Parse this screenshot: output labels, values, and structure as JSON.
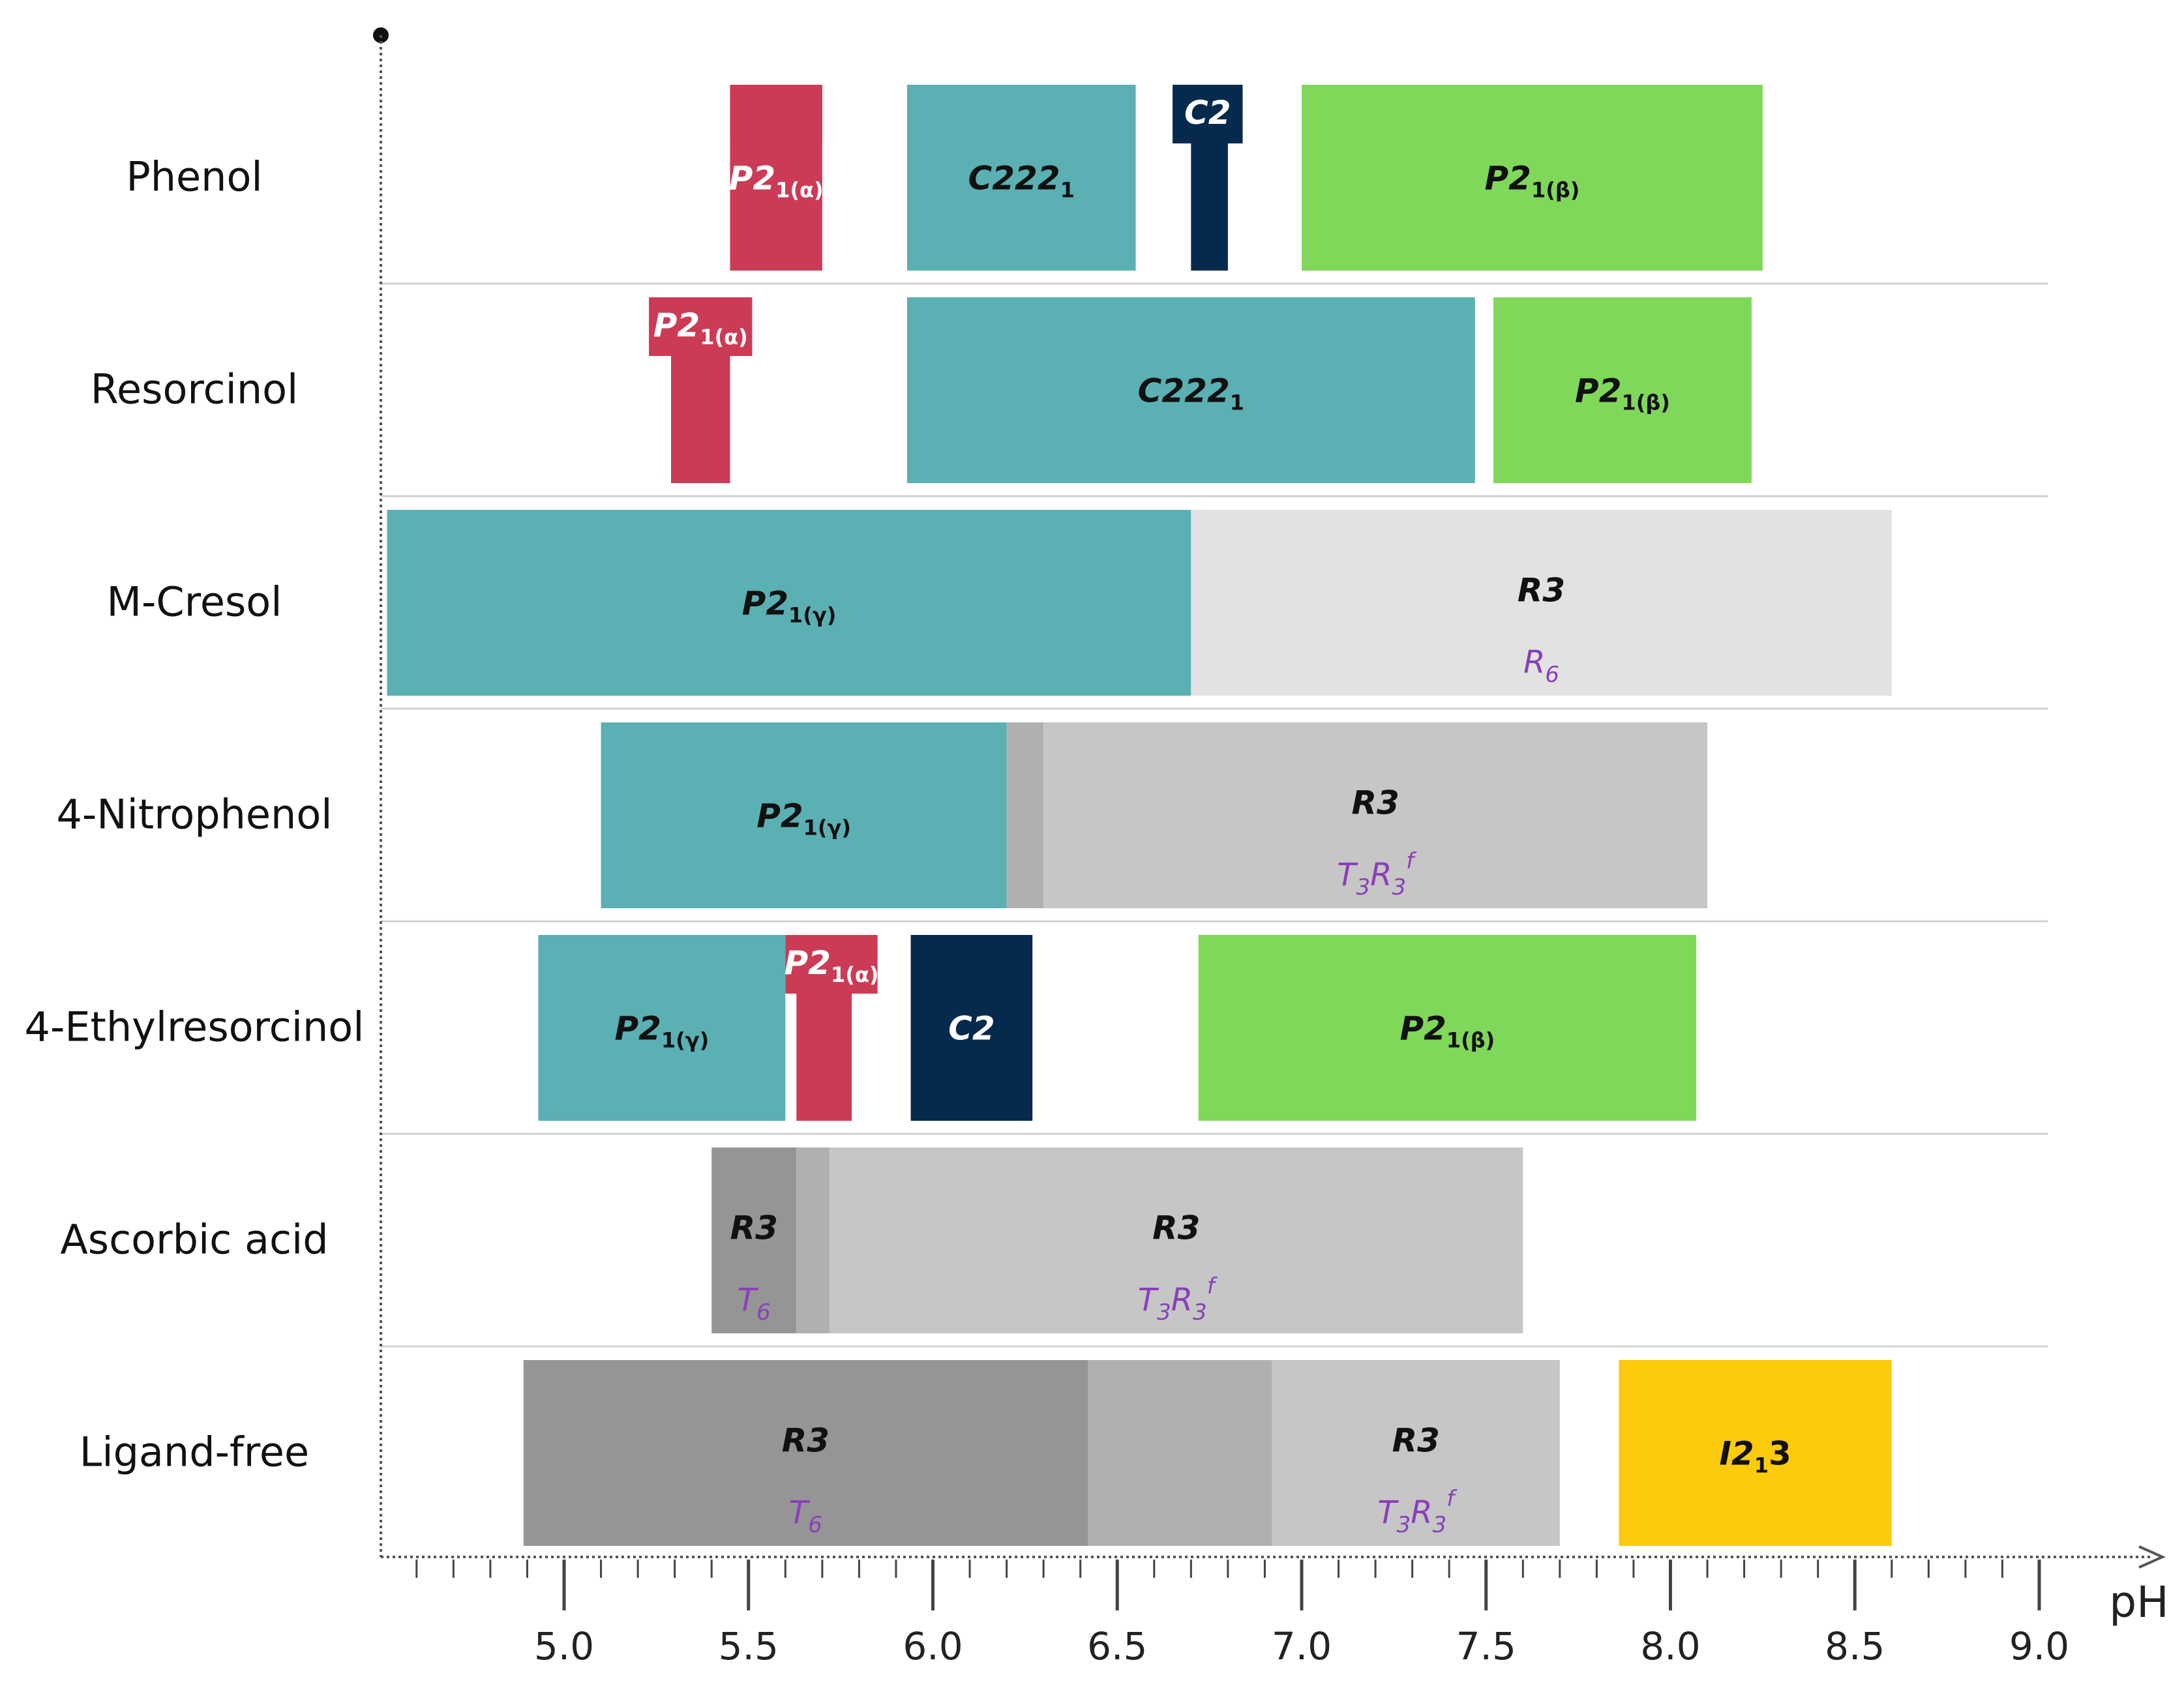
{
  "chart_data": {
    "type": "range-bar",
    "title": "",
    "xlabel": "pH",
    "ylabel": "",
    "xlim": [
      4.5,
      9.0
    ],
    "x_ticks": [
      "5.0",
      "5.5",
      "6.0",
      "6.5",
      "7.0",
      "7.5",
      "8.0",
      "8.5",
      "9.0"
    ],
    "colors": {
      "teal": "#5ab0b3",
      "red": "#cc3b55",
      "navy": "#052a4e",
      "green": "#80d85a",
      "yellow": "#fccb0b",
      "gray_dark": "#959595",
      "gray_mid": "#b0b0b0",
      "gray_light": "#c6c6c6",
      "gray_pale": "#e2e2e2",
      "label_dark": "#111111",
      "label_light": "#ffffff"
    },
    "rows": [
      {
        "name": "Phenol",
        "segments": [
          {
            "start": 5.45,
            "end": 5.7,
            "color": "red",
            "label": "P2",
            "sub": "1(α)",
            "label_color": "label_light",
            "style": "stem",
            "tag_start": 5.45,
            "tag_end": 5.7
          },
          {
            "start": 5.93,
            "end": 6.55,
            "color": "teal",
            "label": "C222",
            "sub": "1",
            "label_color": "label_dark"
          },
          {
            "start": 6.7,
            "end": 6.8,
            "color": "navy",
            "label": "C2",
            "sub": "",
            "label_color": "label_light",
            "style": "stem",
            "tag_start": 6.65,
            "tag_end": 6.84
          },
          {
            "start": 7.0,
            "end": 8.25,
            "color": "green",
            "label": "P2",
            "sub": "1(β)",
            "label_color": "label_dark"
          }
        ]
      },
      {
        "name": "Resorcinol",
        "segments": [
          {
            "start": 5.29,
            "end": 5.45,
            "color": "red",
            "label": "P2",
            "sub": "1(α)",
            "label_color": "label_light",
            "style": "stem",
            "tag_start": 5.23,
            "tag_end": 5.51
          },
          {
            "start": 5.93,
            "end": 7.47,
            "color": "teal",
            "label": "C222",
            "sub": "1",
            "label_color": "label_dark"
          },
          {
            "start": 7.52,
            "end": 8.22,
            "color": "green",
            "label": "P2",
            "sub": "1(β)",
            "label_color": "label_dark"
          }
        ]
      },
      {
        "name": "M-Cresol",
        "segments": [
          {
            "start": 4.52,
            "end": 6.7,
            "color": "teal",
            "label": "P2",
            "sub": "1(γ)",
            "label_color": "label_dark"
          },
          {
            "start": 6.7,
            "end": 8.6,
            "color": "gray_pale",
            "label": "R3",
            "sub": "",
            "label_color": "label_dark",
            "sublabel": "R",
            "sublabel_sub": "6"
          }
        ]
      },
      {
        "name": "4-Nitrophenol",
        "segments": [
          {
            "start": 5.1,
            "end": 6.2,
            "color": "teal",
            "label": "P2",
            "sub": "1(γ)",
            "label_color": "label_dark"
          },
          {
            "start": 6.2,
            "end": 6.3,
            "color": "gray_mid"
          },
          {
            "start": 6.3,
            "end": 8.1,
            "color": "gray_light",
            "label": "R3",
            "sub": "",
            "label_color": "label_dark",
            "sublabel": "T3R3f"
          }
        ]
      },
      {
        "name": "4-Ethylresorcinol",
        "segments": [
          {
            "start": 4.93,
            "end": 5.6,
            "color": "teal",
            "label": "P2",
            "sub": "1(γ)",
            "label_color": "label_dark"
          },
          {
            "start": 5.63,
            "end": 5.78,
            "color": "red",
            "label": "P2",
            "sub": "1(α)",
            "label_color": "label_light",
            "style": "stem",
            "tag_start": 5.6,
            "tag_end": 5.85
          },
          {
            "start": 5.94,
            "end": 6.27,
            "color": "navy",
            "label": "C2",
            "sub": "",
            "label_color": "label_light"
          },
          {
            "start": 6.72,
            "end": 8.07,
            "color": "green",
            "label": "P2",
            "sub": "1(β)",
            "label_color": "label_dark"
          }
        ]
      },
      {
        "name": "Ascorbic acid",
        "segments": [
          {
            "start": 5.4,
            "end": 5.63,
            "color": "gray_dark",
            "label": "R3",
            "sub": "",
            "label_color": "label_dark",
            "sublabel": "T",
            "sublabel_sub": "6"
          },
          {
            "start": 5.63,
            "end": 5.72,
            "color": "gray_mid"
          },
          {
            "start": 5.72,
            "end": 7.6,
            "color": "gray_light",
            "label": "R3",
            "sub": "",
            "label_color": "label_dark",
            "sublabel": "T3R3f"
          }
        ]
      },
      {
        "name": "Ligand-free",
        "segments": [
          {
            "start": 4.89,
            "end": 6.42,
            "color": "gray_dark",
            "label": "R3",
            "sub": "",
            "label_color": "label_dark",
            "sublabel": "T",
            "sublabel_sub": "6"
          },
          {
            "start": 6.42,
            "end": 6.92,
            "color": "gray_mid"
          },
          {
            "start": 6.92,
            "end": 7.7,
            "color": "gray_light",
            "label": "R3",
            "sub": "",
            "label_color": "label_dark",
            "sublabel": "T3R3f"
          },
          {
            "start": 7.86,
            "end": 8.6,
            "color": "yellow",
            "label": "I2",
            "sub": "1",
            "suffix": "3",
            "label_color": "label_dark"
          }
        ]
      }
    ]
  }
}
